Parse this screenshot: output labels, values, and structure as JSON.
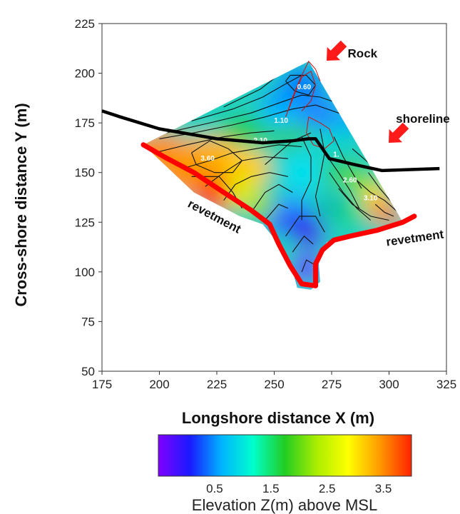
{
  "chart_data": {
    "type": "contour",
    "xlabel": "Longshore distance X (m)",
    "ylabel": "Cross-shore distance Y (m)",
    "xlim": [
      175,
      325
    ],
    "ylim": [
      50,
      225
    ],
    "xticks": [
      175,
      200,
      225,
      250,
      275,
      300,
      325
    ],
    "yticks": [
      50,
      75,
      100,
      125,
      150,
      175,
      200,
      225
    ],
    "contour_labels": [
      {
        "text": "0.60",
        "x": 263,
        "y": 192
      },
      {
        "text": "1.10",
        "x": 253,
        "y": 175
      },
      {
        "text": "2.10",
        "x": 244,
        "y": 165
      },
      {
        "text": "3.60",
        "x": 221,
        "y": 156
      },
      {
        "text": "1.",
        "x": 277,
        "y": 158
      },
      {
        "text": "2.60",
        "x": 283,
        "y": 145
      },
      {
        "text": "3.10",
        "x": 292,
        "y": 136
      }
    ],
    "annotations": [
      {
        "text": "Rock",
        "x": 282,
        "y": 208
      },
      {
        "text": "shoreline",
        "x": 303,
        "y": 175
      },
      {
        "text": "revetment",
        "x": 212,
        "y": 133,
        "rotation": 28
      },
      {
        "text": "revetment",
        "x": 299,
        "y": 113,
        "rotation": -8
      }
    ],
    "shoreline": [
      [
        175,
        181
      ],
      [
        183,
        178
      ],
      [
        200,
        172
      ],
      [
        225,
        167
      ],
      [
        245,
        165
      ],
      [
        258,
        166
      ],
      [
        265,
        167
      ],
      [
        268,
        167
      ],
      [
        274,
        157
      ],
      [
        285,
        154
      ],
      [
        297,
        151
      ],
      [
        322,
        152
      ]
    ],
    "colorbar": {
      "title": "Elevation Z(m) above MSL",
      "ticks": [
        "0.5",
        "1.5",
        "2.5",
        "3.5"
      ],
      "tick_values": [
        0.5,
        1.5,
        2.5,
        3.5
      ],
      "range": [
        -0.5,
        4.0
      ],
      "colors": [
        "#8000ff",
        "#1a1aff",
        "#00b4ff",
        "#00ffcc",
        "#22cc22",
        "#aaee00",
        "#ffff00",
        "#ff9900",
        "#ff2200"
      ]
    },
    "colors": {
      "revetment": "#ff0000",
      "shoreline": "#000000",
      "arrow": "#ff1a1a",
      "rock_outline": "#cc1111",
      "contour": "#111111"
    }
  }
}
